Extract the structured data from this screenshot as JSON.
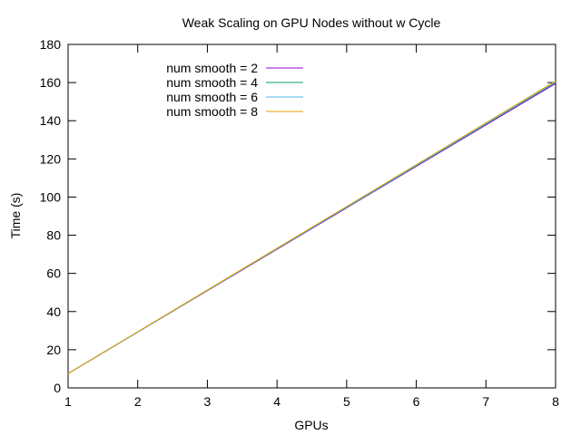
{
  "chart_data": {
    "type": "line",
    "title": "Weak Scaling on GPU Nodes without w Cycle",
    "xlabel": "GPUs",
    "ylabel": "Time (s)",
    "xlim": [
      1,
      8
    ],
    "ylim": [
      0,
      180
    ],
    "xticks": [
      1,
      2,
      3,
      4,
      5,
      6,
      7,
      8
    ],
    "yticks": [
      0,
      20,
      40,
      60,
      80,
      100,
      120,
      140,
      160,
      180
    ],
    "grid": false,
    "legend_position": "top-left",
    "series": [
      {
        "name": "num smooth = 2",
        "color": "#9400d3",
        "x": [
          1,
          8
        ],
        "y": [
          7.5,
          159.5
        ]
      },
      {
        "name": "num smooth = 4",
        "color": "#009e73",
        "x": [
          1,
          8
        ],
        "y": [
          7.5,
          160.0
        ]
      },
      {
        "name": "num smooth = 6",
        "color": "#56b4e9",
        "x": [
          1,
          8
        ],
        "y": [
          7.5,
          160.3
        ]
      },
      {
        "name": "num smooth = 8",
        "color": "#e69f00",
        "x": [
          1,
          8
        ],
        "y": [
          7.5,
          160.8
        ]
      }
    ]
  }
}
